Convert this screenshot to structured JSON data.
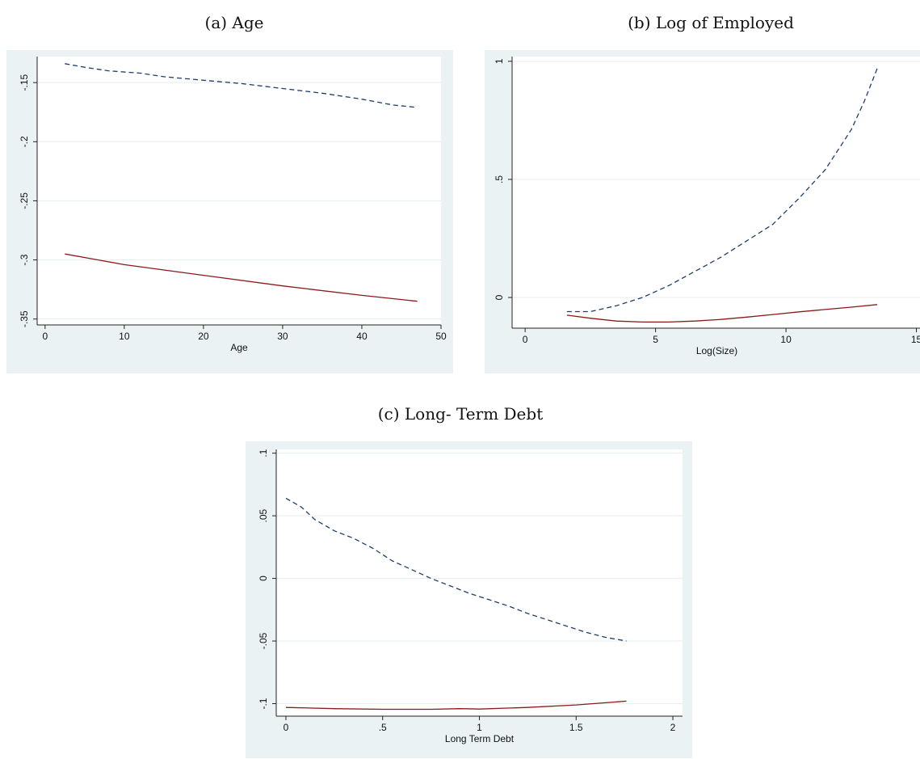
{
  "chart_data": [
    {
      "panel_title": "(a) Age",
      "type": "line",
      "xlabel": "Age",
      "ylabel": "",
      "xlim": [
        -1,
        50
      ],
      "ylim": [
        -0.355,
        -0.128
      ],
      "xticks": [
        0,
        10,
        20,
        30,
        40,
        50
      ],
      "xtick_labels": [
        "0",
        "10",
        "20",
        "30",
        "40",
        "50"
      ],
      "yticks": [
        -0.15,
        -0.2,
        -0.25,
        -0.3,
        -0.35
      ],
      "ytick_labels": [
        "-.15",
        "-.2",
        "-.25",
        "-.3",
        "-.35"
      ],
      "grid": true,
      "series": [
        {
          "style": "dashed",
          "color": "#1f3d6b",
          "x": [
            2.5,
            5,
            8,
            12,
            15,
            20,
            25,
            30,
            35,
            40,
            44,
            47
          ],
          "y": [
            -0.134,
            -0.137,
            -0.14,
            -0.142,
            -0.145,
            -0.148,
            -0.151,
            -0.155,
            -0.159,
            -0.164,
            -0.169,
            -0.171
          ]
        },
        {
          "style": "solid",
          "color": "#8b1a1a",
          "x": [
            2.5,
            10,
            20,
            30,
            40,
            47
          ],
          "y": [
            -0.295,
            -0.304,
            -0.313,
            -0.322,
            -0.33,
            -0.335
          ]
        }
      ]
    },
    {
      "panel_title": "(b) Log of Employed",
      "type": "line",
      "xlabel": "Log(Size)",
      "ylabel": "",
      "xlim": [
        -0.5,
        15.2
      ],
      "ylim": [
        -0.13,
        1.02
      ],
      "xticks": [
        0,
        5,
        10,
        15
      ],
      "xtick_labels": [
        "0",
        "5",
        "10",
        "15"
      ],
      "yticks": [
        0,
        0.5,
        1
      ],
      "ytick_labels": [
        "0",
        ".5",
        "1"
      ],
      "grid": true,
      "series": [
        {
          "style": "dashed",
          "color": "#1f3d6b",
          "x": [
            1.6,
            2.5,
            3.5,
            4.5,
            5.5,
            6.5,
            7.5,
            8.5,
            9.5,
            10.5,
            11.5,
            12.5,
            13.0,
            13.5
          ],
          "y": [
            -0.06,
            -0.06,
            -0.035,
            0.0,
            0.05,
            0.11,
            0.17,
            0.24,
            0.31,
            0.42,
            0.54,
            0.71,
            0.83,
            0.97
          ]
        },
        {
          "style": "solid",
          "color": "#8b1a1a",
          "x": [
            1.6,
            2.5,
            3.5,
            4.5,
            5.5,
            6.5,
            7.5,
            8.5,
            9.5,
            10.5,
            11.5,
            12.5,
            13.5
          ],
          "y": [
            -0.075,
            -0.088,
            -0.1,
            -0.104,
            -0.104,
            -0.1,
            -0.093,
            -0.083,
            -0.072,
            -0.061,
            -0.051,
            -0.041,
            -0.03
          ]
        }
      ]
    },
    {
      "panel_title": "(c) Long- Term Debt",
      "type": "line",
      "xlabel": "Long Term Debt",
      "ylabel": "",
      "xlim": [
        -0.05,
        2.05
      ],
      "ylim": [
        -0.11,
        0.103
      ],
      "xticks": [
        0,
        0.5,
        1,
        1.5,
        2
      ],
      "xtick_labels": [
        "0",
        ".5",
        "1",
        "1.5",
        "2"
      ],
      "yticks": [
        0.1,
        0.05,
        0,
        -0.05,
        -0.1
      ],
      "ytick_labels": [
        ".1",
        ".05",
        "0",
        "-.05",
        "-.1"
      ],
      "grid": true,
      "series": [
        {
          "style": "dashed",
          "color": "#1f3d6b",
          "x": [
            0,
            0.08,
            0.15,
            0.25,
            0.35,
            0.45,
            0.55,
            0.65,
            0.75,
            0.85,
            0.95,
            1.05,
            1.15,
            1.25,
            1.35,
            1.45,
            1.55,
            1.65,
            1.76
          ],
          "y": [
            0.064,
            0.057,
            0.047,
            0.038,
            0.032,
            0.024,
            0.014,
            0.007,
            0.0,
            -0.006,
            -0.012,
            -0.017,
            -0.022,
            -0.028,
            -0.033,
            -0.038,
            -0.043,
            -0.047,
            -0.05
          ]
        },
        {
          "style": "solid",
          "color": "#8b1a1a",
          "x": [
            0,
            0.25,
            0.5,
            0.75,
            0.9,
            1.0,
            1.25,
            1.5,
            1.76
          ],
          "y": [
            -0.103,
            -0.104,
            -0.1045,
            -0.1045,
            -0.104,
            -0.1043,
            -0.103,
            -0.101,
            -0.098
          ]
        }
      ]
    }
  ]
}
